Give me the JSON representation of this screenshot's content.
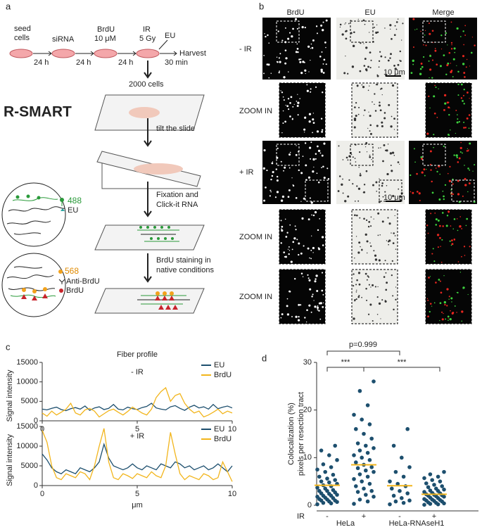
{
  "panel_labels": [
    "a",
    "b",
    "c",
    "d"
  ],
  "panel_a": {
    "steps": [
      "seed",
      "cells",
      "siRNA",
      "BrdU",
      "10 μM",
      "IR",
      "5 Gy",
      "EU",
      "Harvest"
    ],
    "intervals": [
      "24 h",
      "24 h",
      "24 h",
      "30 min"
    ],
    "cells": "2000 cells",
    "title": "R-SMART",
    "actions": [
      "tilt the slide",
      "Fixation and",
      "Click-it RNA",
      "BrdU staining in",
      "native conditions"
    ],
    "legend1": [
      "488",
      "EU"
    ],
    "legend2": [
      "568",
      "Anti-BrdU",
      "BrdU"
    ]
  },
  "panel_b": {
    "columns": [
      "BrdU",
      "EU",
      "Merge"
    ],
    "rows": [
      "- IR",
      "ZOOM IN",
      "+ IR",
      "ZOOM IN",
      "ZOOM IN"
    ],
    "scale": "10 μm"
  },
  "chart_data": [
    {
      "type": "line",
      "title": "Fiber profile",
      "annotation": "- IR",
      "ylabel": "Signal intensity",
      "x": [
        0,
        0.25,
        0.5,
        0.75,
        1,
        1.25,
        1.5,
        1.75,
        2,
        2.25,
        2.5,
        2.75,
        3,
        3.25,
        3.5,
        3.75,
        4,
        4.25,
        4.5,
        4.75,
        5,
        5.25,
        5.5,
        5.75,
        6,
        6.25,
        6.5,
        6.75,
        7,
        7.25,
        7.5,
        7.75,
        8,
        8.25,
        8.5,
        8.75,
        9,
        9.25,
        9.5,
        9.75,
        10
      ],
      "series": [
        {
          "name": "EU",
          "color": "#1d4f6e",
          "values": [
            3000,
            2800,
            3200,
            3500,
            2900,
            2600,
            3100,
            3400,
            3000,
            3800,
            2700,
            3300,
            3600,
            2900,
            3200,
            4200,
            3000,
            2800,
            3500,
            3100,
            2900,
            3400,
            3700,
            4500,
            3300,
            3000,
            2800,
            3600,
            3900,
            3200,
            2700,
            3500,
            4000,
            3300,
            3600,
            3000,
            4200,
            3100,
            3500,
            3800,
            3300
          ]
        },
        {
          "name": "BrdU",
          "color": "#f2b51c",
          "values": [
            2000,
            1200,
            2500,
            1500,
            2200,
            3000,
            4500,
            2000,
            1500,
            2800,
            3200,
            2500,
            1000,
            1800,
            2600,
            3000,
            2200,
            1500,
            2400,
            3500,
            2800,
            2000,
            1500,
            3000,
            6000,
            7500,
            8500,
            5000,
            6500,
            7000,
            4500,
            3000,
            2000,
            2500,
            1000,
            1500,
            2200,
            3000,
            1800,
            2500,
            2000
          ]
        }
      ],
      "xlim": [
        0,
        10
      ],
      "xticks": [
        0,
        5,
        10
      ],
      "ylim": [
        0,
        15000
      ],
      "yticks": [
        0,
        5000,
        10000,
        15000
      ]
    },
    {
      "type": "line",
      "annotation": "+ IR",
      "ylabel": "Signal intensity",
      "xlabel": "μm",
      "x": [
        0,
        0.25,
        0.5,
        0.75,
        1,
        1.25,
        1.5,
        1.75,
        2,
        2.25,
        2.5,
        2.75,
        3,
        3.25,
        3.5,
        3.75,
        4,
        4.25,
        4.5,
        4.75,
        5,
        5.25,
        5.5,
        5.75,
        6,
        6.25,
        6.5,
        6.75,
        7,
        7.25,
        7.5,
        7.75,
        8,
        8.25,
        8.5,
        8.75,
        9,
        9.25,
        9.5,
        9.75,
        10
      ],
      "series": [
        {
          "name": "EU",
          "color": "#1d4f6e",
          "values": [
            8000,
            6500,
            4500,
            3500,
            3000,
            4000,
            3500,
            3000,
            4500,
            4000,
            3500,
            4500,
            6000,
            10500,
            7000,
            5000,
            4500,
            4000,
            4500,
            5500,
            4500,
            4000,
            5000,
            4500,
            4000,
            5500,
            5000,
            4500,
            6000,
            5500,
            4500,
            5000,
            4000,
            4500,
            5000,
            4000,
            4500,
            5500,
            4500,
            3500,
            5000
          ]
        },
        {
          "name": "BrdU",
          "color": "#f2b51c",
          "values": [
            14000,
            11000,
            5000,
            2000,
            1500,
            3000,
            2500,
            2000,
            3500,
            3000,
            1500,
            5000,
            10000,
            14500,
            6000,
            2000,
            1500,
            3000,
            2500,
            1800,
            3000,
            2500,
            2000,
            3500,
            2500,
            2000,
            5000,
            13500,
            8000,
            3000,
            1500,
            2500,
            2000,
            1500,
            3000,
            2500,
            1500,
            2000,
            6000,
            3500,
            1000
          ]
        }
      ],
      "xlim": [
        0,
        10
      ],
      "xticks": [
        0,
        5,
        10
      ],
      "ylim": [
        0,
        15000
      ],
      "yticks": [
        0,
        5000,
        10000,
        15000
      ]
    },
    {
      "type": "dot",
      "ylabel": [
        "Colocalization (%)",
        "pixels per resection tract"
      ],
      "row_label": "IR",
      "categories": [
        "-",
        "+",
        "-",
        "+"
      ],
      "group_labels": [
        "HeLa",
        "HeLa-RNAseH1"
      ],
      "color": "#1d4f6e",
      "mean_color": "#f2b51c",
      "groups": [
        {
          "values": [
            0.2,
            0.4,
            0.5,
            0.7,
            0.8,
            1,
            1,
            1.2,
            1.3,
            1.5,
            1.6,
            1.8,
            2,
            2,
            2.2,
            2.4,
            2.5,
            2.7,
            3,
            3,
            3.2,
            3.5,
            3.7,
            4,
            4.2,
            4.5,
            4.8,
            5,
            5.3,
            5.6,
            6,
            6.4,
            7,
            7.5,
            8,
            8.6,
            9.5,
            10.5,
            11.5,
            12.5
          ],
          "mean": 4.2
        },
        {
          "values": [
            0.3,
            0.8,
            1.2,
            1.8,
            2.2,
            2.8,
            3,
            3.5,
            4,
            4.5,
            5,
            5.5,
            6,
            6.5,
            7,
            7.3,
            7.8,
            8,
            8.5,
            9,
            9.5,
            10,
            10.5,
            11,
            11.5,
            12,
            12.5,
            13,
            14,
            15,
            16,
            17,
            18,
            19,
            21,
            24,
            26
          ],
          "mean": 8.5
        },
        {
          "values": [
            0.2,
            0.5,
            0.8,
            1,
            1.5,
            2,
            2.5,
            3,
            3.5,
            4,
            4.5,
            5,
            6,
            7,
            8,
            10,
            12.5,
            16
          ],
          "mean": 4.1
        },
        {
          "values": [
            0.1,
            0.2,
            0.3,
            0.4,
            0.5,
            0.6,
            0.8,
            0.9,
            1,
            1.1,
            1.2,
            1.3,
            1.5,
            1.6,
            1.8,
            1.9,
            2,
            2.1,
            2.2,
            2.3,
            2.5,
            2.6,
            2.8,
            3,
            3.1,
            3.3,
            3.5,
            3.8,
            4,
            4.3,
            4.6,
            5,
            5.3,
            5.7,
            6,
            6.5,
            7
          ],
          "mean": 2.3
        }
      ],
      "annotations": [
        "p=0.999",
        "***",
        "***"
      ],
      "ylim": [
        0,
        30
      ],
      "yticks": [
        0,
        10,
        20,
        30
      ]
    }
  ]
}
